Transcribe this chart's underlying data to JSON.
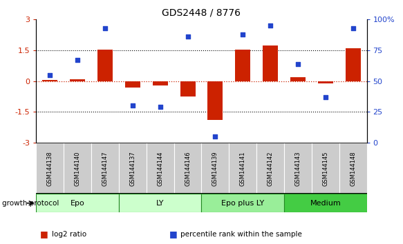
{
  "title": "GDS2448 / 8776",
  "samples": [
    "GSM144138",
    "GSM144140",
    "GSM144147",
    "GSM144137",
    "GSM144144",
    "GSM144146",
    "GSM144139",
    "GSM144141",
    "GSM144142",
    "GSM144143",
    "GSM144145",
    "GSM144148"
  ],
  "log2_ratio": [
    0.05,
    0.1,
    1.55,
    -0.3,
    -0.2,
    -0.75,
    -1.9,
    1.55,
    1.75,
    0.2,
    -0.1,
    1.6
  ],
  "percentile_rank": [
    55,
    67,
    93,
    30,
    29,
    86,
    5,
    88,
    95,
    64,
    37,
    93
  ],
  "groups": [
    {
      "label": "Epo",
      "start": 0,
      "end": 3,
      "color": "#ccffcc"
    },
    {
      "label": "LY",
      "start": 3,
      "end": 6,
      "color": "#ccffcc"
    },
    {
      "label": "Epo plus LY",
      "start": 6,
      "end": 9,
      "color": "#99ee99"
    },
    {
      "label": "Medium",
      "start": 9,
      "end": 12,
      "color": "#44cc44"
    }
  ],
  "ylim": [
    -3,
    3
  ],
  "right_ylim": [
    0,
    100
  ],
  "bar_color": "#cc2200",
  "dot_color": "#2244cc",
  "hline_color": "#cc2200",
  "dotted_hlines": [
    1.5,
    0.0,
    -1.5
  ],
  "bar_width": 0.55,
  "legend_items": [
    "log2 ratio",
    "percentile rank within the sample"
  ],
  "growth_protocol_label": "growth protocol",
  "left_yticks": [
    -3,
    -1.5,
    0,
    1.5,
    3
  ],
  "right_yticks": [
    0,
    25,
    50,
    75,
    100
  ],
  "right_yticklabels": [
    "0",
    "25",
    "50",
    "75",
    "100%"
  ]
}
